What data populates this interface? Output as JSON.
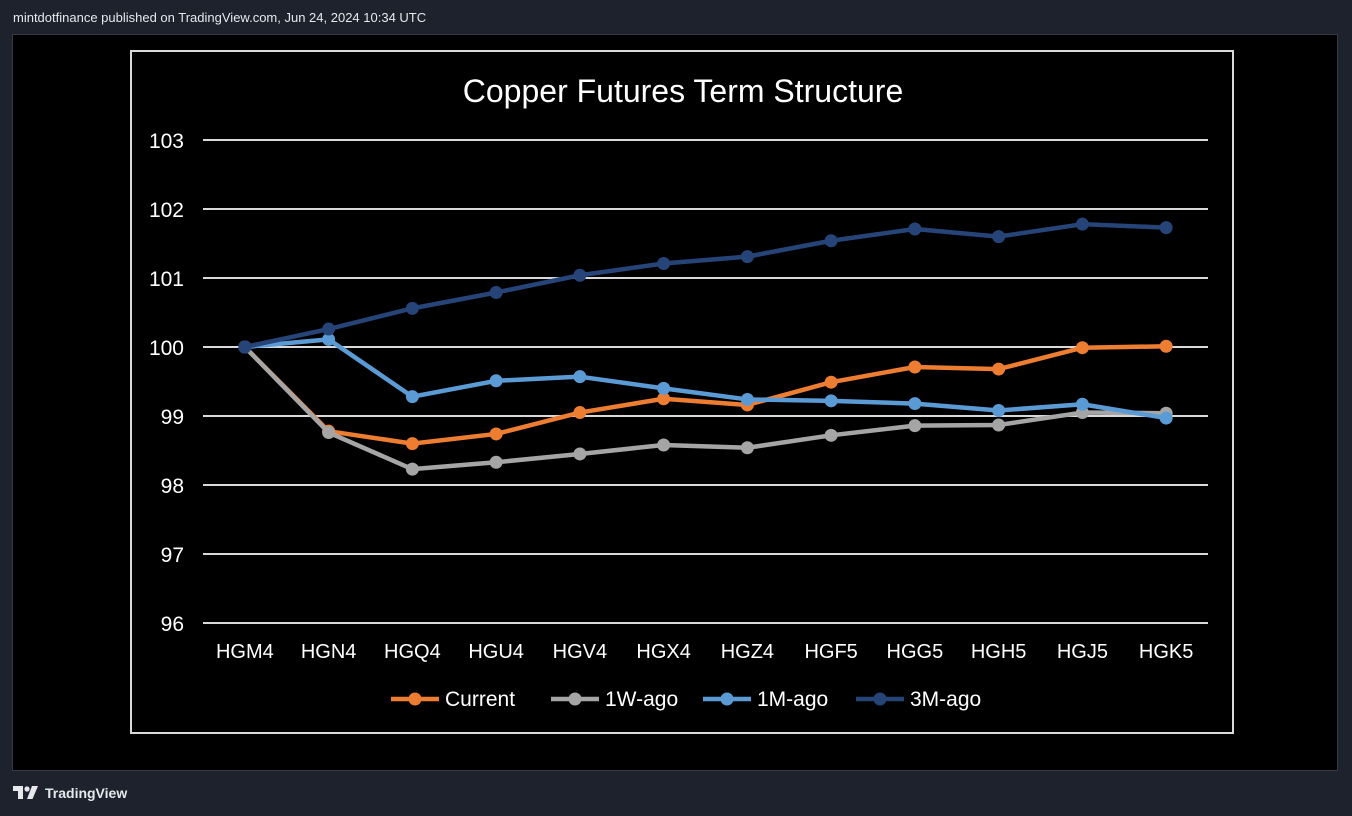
{
  "header": {
    "attribution": "mintdotfinance published on TradingView.com, Jun 24, 2024 10:34 UTC"
  },
  "footer": {
    "logo_label": "TradingView"
  },
  "colors": {
    "background": "#000000",
    "grid": "#d9d9d9",
    "text": "#ffffff",
    "current": "#ed7d31",
    "w1": "#a5a5a5",
    "m1": "#5b9bd5",
    "m3": "#264478"
  },
  "chart_data": {
    "type": "line",
    "title": "Copper Futures Term Structure",
    "xlabel": "",
    "ylabel": "",
    "ylim": [
      96,
      103
    ],
    "yticks": [
      "103",
      "102",
      "101",
      "100",
      "99",
      "98",
      "97",
      "96"
    ],
    "grid": true,
    "legend_position": "bottom",
    "categories": [
      "HGM4",
      "HGN4",
      "HGQ4",
      "HGU4",
      "HGV4",
      "HGX4",
      "HGZ4",
      "HGF5",
      "HGG5",
      "HGH5",
      "HGJ5",
      "HGK5"
    ],
    "series": [
      {
        "name": "Current",
        "color": "#ed7d31",
        "values": [
          100.0,
          98.78,
          98.6,
          98.74,
          99.05,
          99.25,
          99.16,
          99.49,
          99.71,
          99.68,
          99.99,
          100.01
        ]
      },
      {
        "name": "1W-ago",
        "color": "#a5a5a5",
        "values": [
          100.0,
          98.76,
          98.23,
          98.33,
          98.45,
          98.58,
          98.54,
          98.72,
          98.86,
          98.87,
          99.05,
          99.04
        ]
      },
      {
        "name": "1M-ago",
        "color": "#5b9bd5",
        "values": [
          100.0,
          100.11,
          99.28,
          99.51,
          99.57,
          99.4,
          99.24,
          99.22,
          99.18,
          99.08,
          99.17,
          98.97
        ]
      },
      {
        "name": "3M-ago",
        "color": "#264478",
        "values": [
          100.0,
          100.26,
          100.56,
          100.79,
          101.04,
          101.21,
          101.31,
          101.54,
          101.71,
          101.6,
          101.78,
          101.73
        ]
      }
    ]
  }
}
